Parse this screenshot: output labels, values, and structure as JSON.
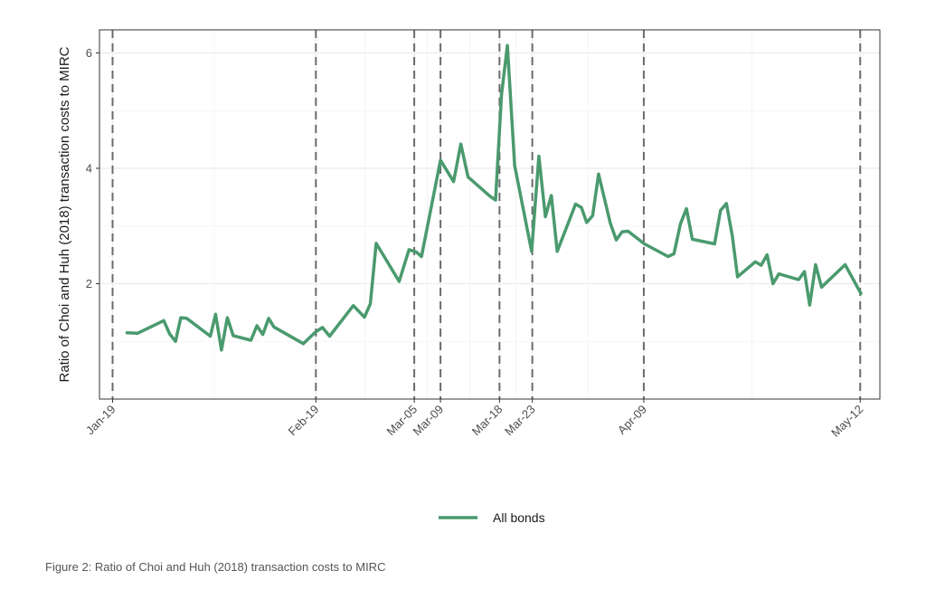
{
  "chart_data": {
    "type": "line",
    "ylabel": "Ratio of Choi and Huh (2018) transaction costs to MIRC",
    "xlabel": "",
    "x_start": "Jan-19",
    "x_end": "May-12",
    "xlim_days": [
      -2,
      117
    ],
    "ylim": [
      0.0,
      6.4
    ],
    "y_ticks": [
      2,
      4,
      6
    ],
    "y_minor_ticks": [
      1,
      3,
      5
    ],
    "x_tick_labels": [
      {
        "label": "Jan-19",
        "day": 0
      },
      {
        "label": "Feb-19",
        "day": 31
      },
      {
        "label": "Mar-05",
        "day": 46
      },
      {
        "label": "Mar-09",
        "day": 50
      },
      {
        "label": "Mar-18",
        "day": 59
      },
      {
        "label": "Mar-23",
        "day": 64
      },
      {
        "label": "Apr-09",
        "day": 81
      },
      {
        "label": "May-12",
        "day": 114
      }
    ],
    "dashed_vlines_days": [
      0,
      31,
      46,
      50,
      59,
      64,
      81,
      114
    ],
    "grid": true,
    "legend_position": "bottom",
    "series": [
      {
        "name": "All bonds",
        "color": "#4a9a6e",
        "points": [
          [
            2.2,
            1.15
          ],
          [
            3.8,
            1.14
          ],
          [
            7.8,
            1.36
          ],
          [
            8.7,
            1.13
          ],
          [
            9.6,
            1.0
          ],
          [
            10.4,
            1.41
          ],
          [
            11.3,
            1.4
          ],
          [
            14.9,
            1.09
          ],
          [
            15.7,
            1.47
          ],
          [
            16.6,
            0.85
          ],
          [
            17.5,
            1.41
          ],
          [
            18.4,
            1.1
          ],
          [
            21.1,
            1.02
          ],
          [
            22.0,
            1.27
          ],
          [
            22.9,
            1.12
          ],
          [
            23.8,
            1.4
          ],
          [
            24.6,
            1.25
          ],
          [
            29.1,
            0.96
          ],
          [
            30.9,
            1.16
          ],
          [
            32.0,
            1.24
          ],
          [
            33.1,
            1.09
          ],
          [
            36.7,
            1.62
          ],
          [
            38.4,
            1.42
          ],
          [
            39.3,
            1.65
          ],
          [
            40.2,
            2.7
          ],
          [
            43.7,
            2.04
          ],
          [
            45.2,
            2.59
          ],
          [
            46.3,
            2.55
          ],
          [
            47.1,
            2.47
          ],
          [
            50.0,
            4.14
          ],
          [
            52.0,
            3.77
          ],
          [
            53.1,
            4.42
          ],
          [
            54.2,
            3.85
          ],
          [
            57.5,
            3.52
          ],
          [
            58.4,
            3.45
          ],
          [
            59.3,
            5.28
          ],
          [
            60.2,
            6.13
          ],
          [
            61.3,
            4.05
          ],
          [
            63.9,
            2.56
          ],
          [
            65.0,
            4.21
          ],
          [
            66.0,
            3.16
          ],
          [
            66.9,
            3.53
          ],
          [
            67.8,
            2.56
          ],
          [
            70.6,
            3.38
          ],
          [
            71.5,
            3.32
          ],
          [
            72.3,
            3.06
          ],
          [
            73.2,
            3.18
          ],
          [
            74.1,
            3.9
          ],
          [
            75.9,
            3.05
          ],
          [
            76.8,
            2.76
          ],
          [
            77.7,
            2.9
          ],
          [
            78.6,
            2.91
          ],
          [
            81.1,
            2.69
          ],
          [
            84.7,
            2.47
          ],
          [
            85.6,
            2.52
          ],
          [
            86.6,
            3.04
          ],
          [
            87.5,
            3.3
          ],
          [
            88.4,
            2.77
          ],
          [
            91.8,
            2.69
          ],
          [
            92.7,
            3.27
          ],
          [
            93.6,
            3.39
          ],
          [
            94.5,
            2.83
          ],
          [
            95.3,
            2.12
          ],
          [
            98.0,
            2.38
          ],
          [
            98.9,
            2.32
          ],
          [
            99.8,
            2.5
          ],
          [
            100.7,
            2.0
          ],
          [
            101.6,
            2.17
          ],
          [
            104.6,
            2.07
          ],
          [
            105.5,
            2.21
          ],
          [
            106.3,
            1.63
          ],
          [
            107.2,
            2.33
          ],
          [
            108.1,
            1.94
          ],
          [
            111.7,
            2.33
          ],
          [
            114.1,
            1.83
          ]
        ]
      }
    ]
  },
  "legend": {
    "label": "All bonds"
  },
  "caption": {
    "text": "Figure 2: Ratio of Choi and Huh (2018) transaction costs to MIRC"
  }
}
